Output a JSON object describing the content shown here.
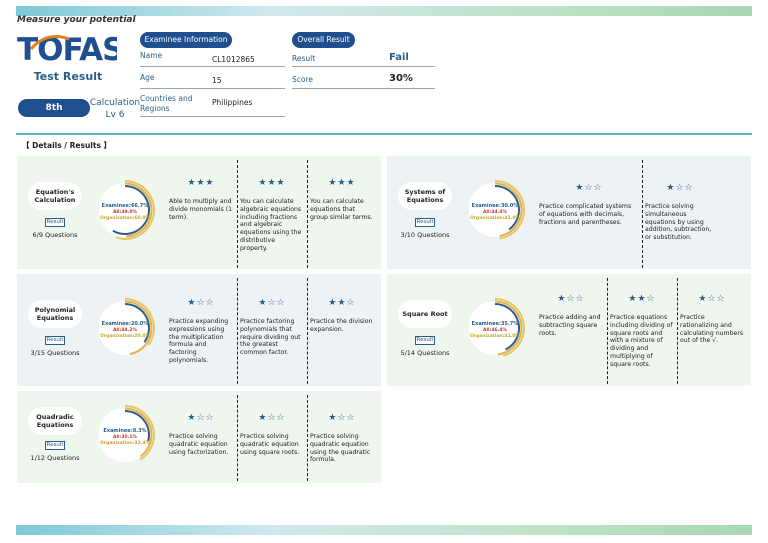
{
  "header": {
    "tagline": "Measure your potential",
    "logo_text": "TOFAS",
    "title": "Test Result",
    "grade": "8th",
    "level": "Calculation Lv 6"
  },
  "examinee": {
    "heading": "Examinee Information",
    "name_label": "Name",
    "name_value": "CL1012865",
    "age_label": "Age",
    "age_value": "15",
    "country_label": "Countries and Regions",
    "country_value": "Philippines"
  },
  "overall": {
    "heading": "Overall Result",
    "result_label": "Result",
    "result_value": "Fail",
    "score_label": "Score",
    "score_value": "30%"
  },
  "details_title": "【 Details / Results 】",
  "colors": {
    "accent": "#1f4f8e",
    "teal": "#5db3c3",
    "green_card": "#eef6ee",
    "blue_card": "#edf2f4"
  },
  "cards": [
    {
      "name": "Equation's Calculation",
      "result_label": "Result",
      "questions": "6/9 Questions",
      "examinee": "Examinee:66.7%",
      "all": "All:49.0%",
      "org": "Organization:60.0%",
      "examinee_value": 66.7,
      "all_value": 49.0,
      "org_value": 60.0,
      "items": [
        {
          "stars": "★★★",
          "text": "Able to multiply and divide monomials (1 term)."
        },
        {
          "stars": "★★★",
          "text": "You can calculate algebraic equations including fractions and algebraic equations using the distributive property."
        },
        {
          "stars": "★★★",
          "text": "You can calculate equations that group similar terms."
        }
      ]
    },
    {
      "name": "Systems of Equations",
      "result_label": "Result",
      "questions": "3/10 Questions",
      "examinee": "Examinee:30.0%",
      "all": "All:44.4%",
      "org": "Organization:45.0%",
      "examinee_value": 30.0,
      "all_value": 44.4,
      "org_value": 45.0,
      "items": [
        {
          "stars": "★☆☆",
          "text": "Practice complicated systems of equations with decimals, fractions and parentheses."
        },
        {
          "stars": "★☆☆",
          "text": "Practice solving simultaneous equations by using addition, subtraction, or substitution."
        }
      ]
    },
    {
      "name": "Polynomial Equations",
      "result_label": "Result",
      "questions": "3/15 Questions",
      "examinee": "Examinee:20.0%",
      "all": "All:44.2%",
      "org": "Organization:20.0%",
      "examinee_value": 20.0,
      "all_value": 44.2,
      "org_value": 20.0,
      "items": [
        {
          "stars": "★☆☆",
          "text": "Practice expanding expressions using the multiplication formula and factoring polynomials."
        },
        {
          "stars": "★☆☆",
          "text": "Practice factoring polynomials that require dividing out the greatest common factor."
        },
        {
          "stars": "★★☆",
          "text": "Practice the division expansion."
        }
      ]
    },
    {
      "name": "Square Root",
      "result_label": "Result",
      "questions": "5/14 Questions",
      "examinee": "Examinee:35.7%",
      "all": "All:46.4%",
      "org": "Organization:41.0%",
      "examinee_value": 35.7,
      "all_value": 46.4,
      "org_value": 41.0,
      "items": [
        {
          "stars": "★☆☆",
          "text": "Practice adding and subtracting square roots."
        },
        {
          "stars": "★★☆",
          "text": "Practice equations including dividing of square roots and with a mixture of dividing and multiplying of square roots."
        },
        {
          "stars": "★☆☆",
          "text": "Practice rationalizing and calculating numbers out of the √."
        }
      ]
    },
    {
      "name": "Quadradic Equations",
      "result_label": "Result",
      "questions": "1/12 Questions",
      "examinee": "Examinee:8.3%",
      "all": "All:30.1%",
      "org": "Organization:32.4%",
      "examinee_value": 8.3,
      "all_value": 30.1,
      "org_value": 32.4,
      "items": [
        {
          "stars": "★☆☆",
          "text": "Practice solving quadratic equation using factorization."
        },
        {
          "stars": "★☆☆",
          "text": "Practice solving quadratic equation using square roots."
        },
        {
          "stars": "★☆☆",
          "text": "Practice solving quadratic equation using the quadratic formula."
        }
      ]
    }
  ]
}
